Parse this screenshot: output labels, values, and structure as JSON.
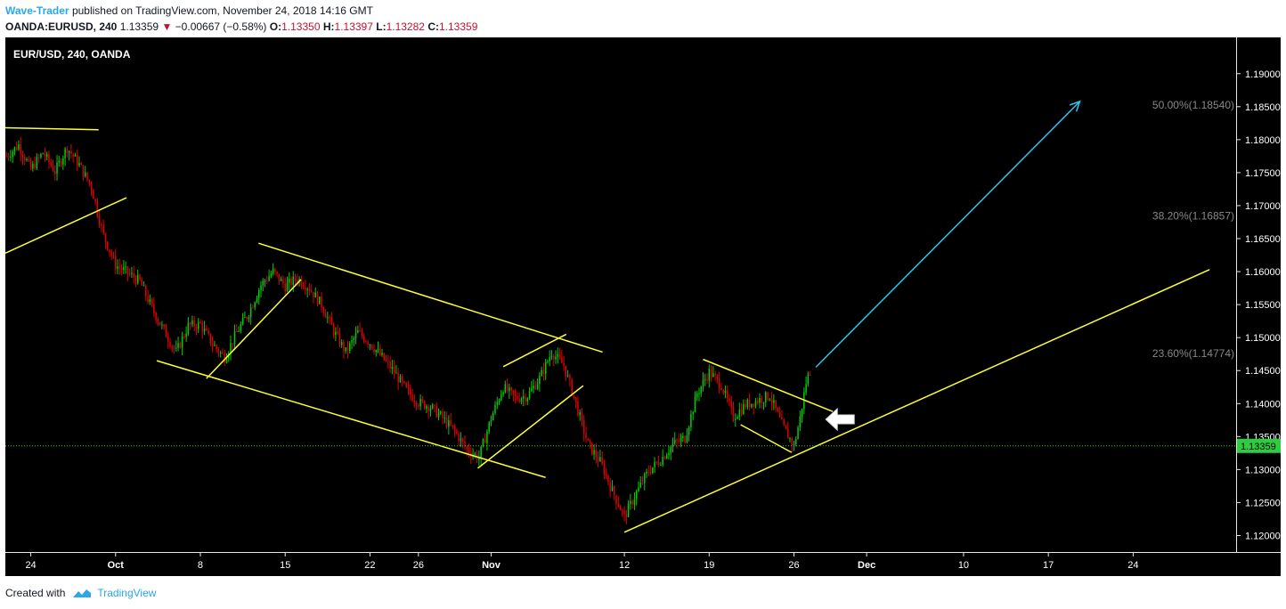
{
  "header": {
    "author": "Wave-Trader",
    "published_text": "published on TradingView.com, November 24, 2018 14:16 GMT"
  },
  "ohlc": {
    "symbol": "OANDA:EURUSD, 240",
    "last": "1.13359",
    "change": "−0.00667 (−0.58%)",
    "o_label": "O:",
    "o_value": "1.13350",
    "h_label": "H:",
    "h_value": "1.13397",
    "l_label": "L:",
    "l_value": "1.13282",
    "c_label": "C:",
    "c_value": "1.13359"
  },
  "footer": {
    "created_with": "Created with",
    "brand": "TradingView"
  },
  "colors": {
    "background": "#000000",
    "up_candle": "#00d000",
    "down_candle": "#e00000",
    "trendline": "#ffff33",
    "target_arrow": "#29c6f0",
    "price_line": "#33cc33",
    "fib_text": "#888888"
  },
  "chart_data": {
    "type": "candlestick",
    "title": "EUR/USD, 240, OANDA",
    "ylim": [
      1.1175,
      1.1955
    ],
    "y_ticks": [
      "1.19000",
      "1.18500",
      "1.18000",
      "1.17500",
      "1.17000",
      "1.16500",
      "1.16000",
      "1.15500",
      "1.15000",
      "1.14500",
      "1.14000",
      "1.13500",
      "1.13000",
      "1.12500",
      "1.12000"
    ],
    "y_tick_values": [
      1.19,
      1.185,
      1.18,
      1.175,
      1.17,
      1.165,
      1.16,
      1.155,
      1.15,
      1.145,
      1.14,
      1.135,
      1.13,
      1.125,
      1.12
    ],
    "x_ticks": [
      {
        "label": "24",
        "day": 0
      },
      {
        "label": "Oct",
        "day": 7
      },
      {
        "label": "8",
        "day": 14
      },
      {
        "label": "15",
        "day": 21
      },
      {
        "label": "22",
        "day": 28
      },
      {
        "label": "26",
        "day": 32
      },
      {
        "label": "Nov",
        "day": 38
      },
      {
        "label": "12",
        "day": 49
      },
      {
        "label": "19",
        "day": 56
      },
      {
        "label": "26",
        "day": 63
      },
      {
        "label": "Dec",
        "day": 69
      },
      {
        "label": "10",
        "day": 77
      },
      {
        "label": "17",
        "day": 84
      },
      {
        "label": "24",
        "day": 91
      }
    ],
    "x_day_range": [
      -2.1,
      99.5
    ],
    "current_price": 1.13359,
    "current_price_label": "1.13359",
    "price_path": [
      {
        "day": -2,
        "price": 1.1775
      },
      {
        "day": -1,
        "price": 1.1792
      },
      {
        "day": 0,
        "price": 1.1755
      },
      {
        "day": 1,
        "price": 1.178
      },
      {
        "day": 2,
        "price": 1.1752
      },
      {
        "day": 3,
        "price": 1.1788
      },
      {
        "day": 4,
        "price": 1.1762
      },
      {
        "day": 5,
        "price": 1.1728
      },
      {
        "day": 6,
        "price": 1.1655
      },
      {
        "day": 7,
        "price": 1.161
      },
      {
        "day": 8,
        "price": 1.1598
      },
      {
        "day": 9,
        "price": 1.1585
      },
      {
        "day": 10,
        "price": 1.1545
      },
      {
        "day": 11,
        "price": 1.151
      },
      {
        "day": 12,
        "price": 1.1478
      },
      {
        "day": 13,
        "price": 1.1518
      },
      {
        "day": 14,
        "price": 1.152
      },
      {
        "day": 15,
        "price": 1.149
      },
      {
        "day": 16,
        "price": 1.147
      },
      {
        "day": 17,
        "price": 1.1508
      },
      {
        "day": 18,
        "price": 1.1538
      },
      {
        "day": 19,
        "price": 1.158
      },
      {
        "day": 20,
        "price": 1.16
      },
      {
        "day": 21,
        "price": 1.1578
      },
      {
        "day": 22,
        "price": 1.159
      },
      {
        "day": 23,
        "price": 1.1575
      },
      {
        "day": 24,
        "price": 1.155
      },
      {
        "day": 25,
        "price": 1.151
      },
      {
        "day": 26,
        "price": 1.1478
      },
      {
        "day": 27,
        "price": 1.1508
      },
      {
        "day": 28,
        "price": 1.1492
      },
      {
        "day": 29,
        "price": 1.147
      },
      {
        "day": 30,
        "price": 1.1448
      },
      {
        "day": 31,
        "price": 1.142
      },
      {
        "day": 32,
        "price": 1.1402
      },
      {
        "day": 33,
        "price": 1.1395
      },
      {
        "day": 34,
        "price": 1.1378
      },
      {
        "day": 35,
        "price": 1.1358
      },
      {
        "day": 36,
        "price": 1.133
      },
      {
        "day": 37,
        "price": 1.1318
      },
      {
        "day": 38,
        "price": 1.1378
      },
      {
        "day": 39,
        "price": 1.1425
      },
      {
        "day": 40,
        "price": 1.1408
      },
      {
        "day": 41,
        "price": 1.1412
      },
      {
        "day": 42,
        "price": 1.1438
      },
      {
        "day": 43,
        "price": 1.1478
      },
      {
        "day": 44,
        "price": 1.1458
      },
      {
        "day": 45,
        "price": 1.14
      },
      {
        "day": 46,
        "price": 1.1338
      },
      {
        "day": 47,
        "price": 1.1312
      },
      {
        "day": 48,
        "price": 1.1268
      },
      {
        "day": 49,
        "price": 1.1228
      },
      {
        "day": 50,
        "price": 1.1265
      },
      {
        "day": 51,
        "price": 1.1298
      },
      {
        "day": 52,
        "price": 1.1315
      },
      {
        "day": 53,
        "price": 1.1338
      },
      {
        "day": 54,
        "price": 1.1348
      },
      {
        "day": 55,
        "price": 1.1415
      },
      {
        "day": 56,
        "price": 1.1448
      },
      {
        "day": 57,
        "price": 1.1428
      },
      {
        "day": 58,
        "price": 1.138
      },
      {
        "day": 59,
        "price": 1.1398
      },
      {
        "day": 60,
        "price": 1.1405
      },
      {
        "day": 61,
        "price": 1.1412
      },
      {
        "day": 62,
        "price": 1.1368
      },
      {
        "day": 63,
        "price": 1.1335
      },
      {
        "day": 63.5,
        "price": 1.1378
      },
      {
        "day": 64,
        "price": 1.1432
      },
      {
        "day": 64.4,
        "price": 1.1452
      }
    ],
    "trendlines": [
      {
        "name": "top-resistance-line",
        "points": [
          {
            "day": -2.1,
            "price": 1.1818
          },
          {
            "day": 5.6,
            "price": 1.1815
          }
        ]
      },
      {
        "name": "early-support-line",
        "points": [
          {
            "day": -2.1,
            "price": 1.1628
          },
          {
            "day": 7.9,
            "price": 1.1712
          }
        ]
      },
      {
        "name": "channel-upper-line",
        "points": [
          {
            "day": 18.8,
            "price": 1.1643
          },
          {
            "day": 47.2,
            "price": 1.1478
          }
        ]
      },
      {
        "name": "channel-lower-line",
        "points": [
          {
            "day": 10.4,
            "price": 1.1465
          },
          {
            "day": 42.5,
            "price": 1.1288
          }
        ]
      },
      {
        "name": "flag1-line",
        "points": [
          {
            "day": 14.5,
            "price": 1.1438
          },
          {
            "day": 22.3,
            "price": 1.1588
          }
        ]
      },
      {
        "name": "flag2-lower-line",
        "points": [
          {
            "day": 36.9,
            "price": 1.1302
          },
          {
            "day": 45.6,
            "price": 1.1427
          }
        ]
      },
      {
        "name": "flag2-upper-line",
        "points": [
          {
            "day": 39.0,
            "price": 1.1456
          },
          {
            "day": 44.2,
            "price": 1.1505
          }
        ]
      },
      {
        "name": "wedge-upper-line",
        "points": [
          {
            "day": 55.5,
            "price": 1.1467
          },
          {
            "day": 66.2,
            "price": 1.1388
          }
        ]
      },
      {
        "name": "wedge-lower-line",
        "points": [
          {
            "day": 58.6,
            "price": 1.1368
          },
          {
            "day": 62.8,
            "price": 1.1326
          }
        ]
      },
      {
        "name": "rising-support-line",
        "points": [
          {
            "day": 49.0,
            "price": 1.1205
          },
          {
            "day": 97.3,
            "price": 1.1603
          }
        ]
      }
    ],
    "target_arrow": {
      "from": {
        "day": 64.8,
        "price": 1.1455
      },
      "to": {
        "day": 86.6,
        "price": 1.1858
      }
    },
    "fib_levels": [
      {
        "label": "50.00%(1.18540)",
        "price": 1.1854
      },
      {
        "label": "38.20%(1.16857)",
        "price": 1.16857
      },
      {
        "label": "23.60%(1.14774)",
        "price": 1.14774
      }
    ],
    "annotation_arrow": {
      "direction": "left",
      "day": 66.8,
      "price": 1.1376
    }
  }
}
